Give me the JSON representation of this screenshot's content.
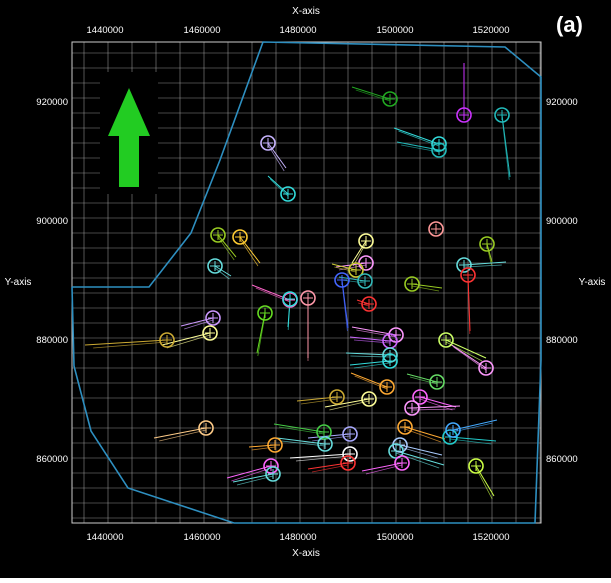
{
  "panel_label": "(a)",
  "axes": {
    "x_label": "X-axis",
    "y_label": "Y-axis",
    "x_ticks": [
      "1440000",
      "1460000",
      "1480000",
      "1500000",
      "1520000"
    ],
    "y_ticks": [
      "920000",
      "900000",
      "880000",
      "860000"
    ],
    "x_range": [
      1433000,
      1531000
    ],
    "y_range": [
      849000,
      930000
    ],
    "grid": true
  },
  "north_arrow": {
    "color": "#22cc22",
    "icon": "north-arrow-icon"
  },
  "boundary_color": "#2e8fc0",
  "background": "#000000",
  "grid_color": "#bbbbbb"
}
